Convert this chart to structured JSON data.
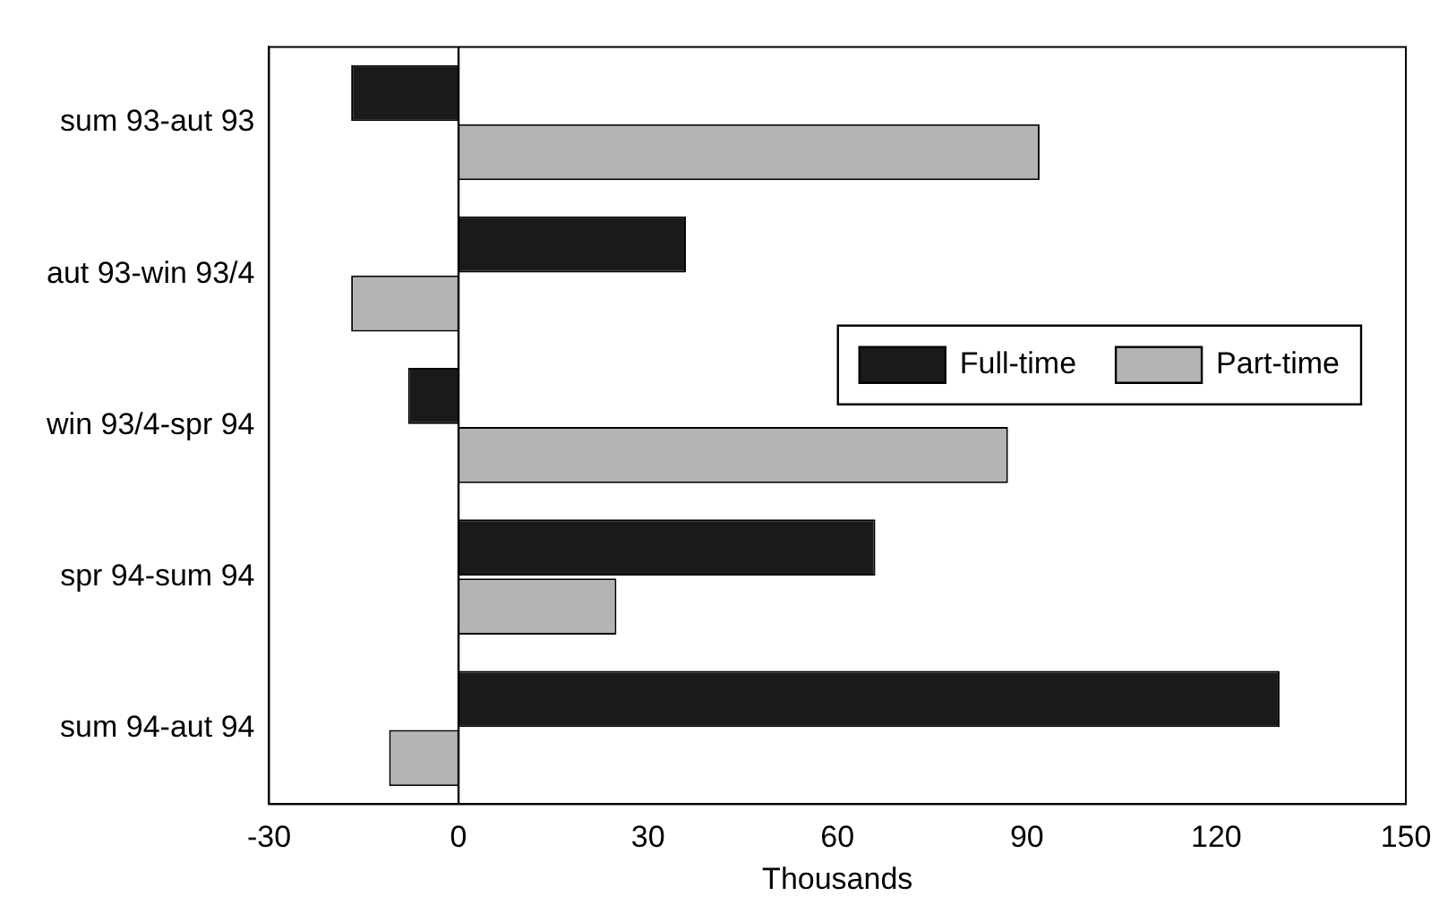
{
  "chart_data": {
    "type": "bar",
    "orientation": "horizontal",
    "xlabel": "Thousands",
    "categories": [
      "sum 93-aut 93",
      "aut 93-win 93/4",
      "win 93/4-spr 94",
      "spr 94-sum 94",
      "sum 94-aut 94"
    ],
    "series": [
      {
        "name": "Full-time",
        "color": "#1a1a1a",
        "values": [
          -17,
          36,
          -8,
          66,
          130
        ]
      },
      {
        "name": "Part-time",
        "color": "#b4b4b4",
        "values": [
          92,
          -17,
          87,
          25,
          -11
        ]
      }
    ],
    "xlim": [
      -30,
      150
    ],
    "xticks": [
      -30,
      0,
      30,
      60,
      90,
      120,
      150
    ],
    "ref_lines": [
      {
        "axis": "x",
        "value": 0
      }
    ],
    "grid": false,
    "legend": "right"
  }
}
